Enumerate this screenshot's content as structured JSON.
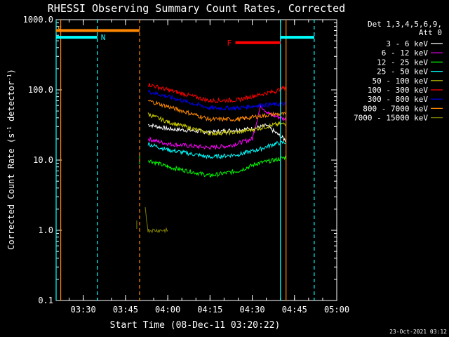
{
  "chart_data": {
    "type": "line",
    "title": "RHESSI Observing Summary Count Rates, Corrected",
    "xlabel": "Start Time (08-Dec-11 03:20:22)",
    "ylabel_main": "Corrected Count Rate (s",
    "ylabel_sup1": "-1",
    "ylabel_mid": " detector",
    "ylabel_sup2": "-1",
    "ylabel_end": ")",
    "y_scale": "log",
    "xlim": [
      "03:20:22",
      "05:00:00"
    ],
    "ylim": [
      0.1,
      1000
    ],
    "x_ticks": [
      "03:30",
      "03:45",
      "04:00",
      "04:15",
      "04:30",
      "04:45",
      "05:00"
    ],
    "y_ticks": [
      "0.1",
      "1.0",
      "10.0",
      "100.0",
      "1000.0"
    ],
    "legend_header": [
      "Det 1,3,4,5,6,9,",
      "Att 0"
    ],
    "series": [
      {
        "name": "3 - 6 keV",
        "color": "#ffffff",
        "segment_a": [],
        "segment_b": [
          [
            "03:53",
            32
          ],
          [
            "04:00",
            28
          ],
          [
            "04:15",
            25
          ],
          [
            "04:30",
            28
          ],
          [
            "04:35",
            31
          ],
          [
            "04:42",
            19
          ]
        ]
      },
      {
        "name": "6 - 12 keV",
        "color": "#ff00ff",
        "segment_a": [],
        "segment_b": [
          [
            "03:53",
            20
          ],
          [
            "04:00",
            17
          ],
          [
            "04:15",
            15
          ],
          [
            "04:22",
            16
          ],
          [
            "04:30",
            20
          ],
          [
            "04:33",
            60
          ],
          [
            "04:36",
            45
          ],
          [
            "04:42",
            38
          ]
        ]
      },
      {
        "name": "12 - 25 keV",
        "color": "#00ff00",
        "segment_a": [
          [
            "03:50",
            10
          ]
        ],
        "segment_b": [
          [
            "03:53",
            10
          ],
          [
            "04:00",
            8
          ],
          [
            "04:15",
            6
          ],
          [
            "04:25",
            7
          ],
          [
            "04:32",
            9
          ],
          [
            "04:38",
            10
          ],
          [
            "04:42",
            11
          ]
        ]
      },
      {
        "name": "25 - 50 keV",
        "color": "#00ffff",
        "segment_a": [],
        "segment_b": [
          [
            "03:53",
            17
          ],
          [
            "04:00",
            14
          ],
          [
            "04:15",
            11
          ],
          [
            "04:25",
            12
          ],
          [
            "04:32",
            14
          ],
          [
            "04:38",
            17
          ],
          [
            "04:42",
            18
          ]
        ]
      },
      {
        "name": "50 - 100 keV",
        "color": "#cccc00",
        "segment_a": [],
        "segment_b": [
          [
            "03:53",
            45
          ],
          [
            "04:00",
            35
          ],
          [
            "04:15",
            24
          ],
          [
            "04:25",
            25
          ],
          [
            "04:32",
            28
          ],
          [
            "04:38",
            32
          ],
          [
            "04:42",
            33
          ]
        ]
      },
      {
        "name": "100 - 300 keV",
        "color": "#ff0000",
        "segment_a": [],
        "segment_b": [
          [
            "03:53",
            120
          ],
          [
            "04:00",
            100
          ],
          [
            "04:15",
            70
          ],
          [
            "04:25",
            72
          ],
          [
            "04:32",
            85
          ],
          [
            "04:38",
            95
          ],
          [
            "04:42",
            110
          ]
        ]
      },
      {
        "name": "300 - 800 keV",
        "color": "#0000ff",
        "segment_a": [],
        "segment_b": [
          [
            "03:53",
            95
          ],
          [
            "04:00",
            80
          ],
          [
            "04:15",
            55
          ],
          [
            "04:25",
            55
          ],
          [
            "04:32",
            60
          ],
          [
            "04:38",
            62
          ],
          [
            "04:42",
            63
          ]
        ]
      },
      {
        "name": "800 - 7000 keV",
        "color": "#ff8800",
        "segment_a": [],
        "segment_b": [
          [
            "03:53",
            70
          ],
          [
            "04:00",
            58
          ],
          [
            "04:15",
            38
          ],
          [
            "04:25",
            38
          ],
          [
            "04:32",
            42
          ],
          [
            "04:38",
            45
          ],
          [
            "04:42",
            45
          ]
        ]
      },
      {
        "name": "7000 - 15000 keV",
        "color": "#808000",
        "segment_a": [
          [
            "03:49",
            1.2
          ]
        ],
        "segment_b": [
          [
            "03:52",
            2
          ],
          [
            "03:53",
            1
          ],
          [
            "04:00",
            1
          ]
        ]
      }
    ],
    "saa_flag": {
      "label": "S",
      "color": "#ff8800",
      "value_y": 700,
      "start": "03:20:22",
      "end": "03:50"
    },
    "night_flag": {
      "label": "N",
      "color": "#00ffff",
      "value_y": 560,
      "spans": [
        [
          "03:20:22",
          "03:35"
        ],
        [
          "04:40",
          "04:52"
        ]
      ]
    },
    "flare_flag": {
      "label": "F",
      "color": "#ff0000",
      "value_y": 470,
      "start": "04:24",
      "end": "04:40"
    },
    "vertical_lines": [
      {
        "time": "03:20:22",
        "color": "#00ffff",
        "style": "solid"
      },
      {
        "time": "03:22",
        "color": "#ff8800",
        "style": "solid"
      },
      {
        "time": "03:35",
        "color": "#00ffff",
        "style": "dashed"
      },
      {
        "time": "03:50",
        "color": "#ff8800",
        "style": "dashed"
      },
      {
        "time": "04:40",
        "color": "#00ffff",
        "style": "solid"
      },
      {
        "time": "04:52",
        "color": "#00ffff",
        "style": "dashed"
      },
      {
        "time": "04:42",
        "color": "#ff8800",
        "style": "solid"
      }
    ]
  },
  "footer_timestamp": "23-Oct-2021 03:12"
}
